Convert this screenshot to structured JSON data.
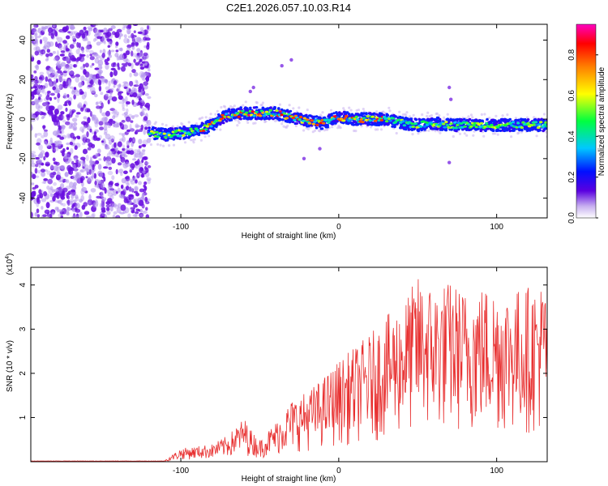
{
  "title": "C2E1.2026.057.10.03.R14",
  "colors": {
    "snr_line": "#e83030",
    "scatter_noise": "#7a2be0",
    "axis": "#000000"
  },
  "chart_data": [
    {
      "type": "heatmap",
      "name": "spectrogram",
      "xlabel": "Height of straight line (km)",
      "ylabel": "Frequency (Hz)",
      "xlim": [
        -195,
        132
      ],
      "ylim": [
        -50,
        48
      ],
      "xticks": [
        -100,
        0,
        100
      ],
      "yticks": [
        -40,
        -20,
        0,
        20,
        40
      ],
      "noise_region_x": [
        -195,
        -120
      ],
      "track": {
        "x": [
          -120,
          -110,
          -100,
          -90,
          -80,
          -75,
          -70,
          -60,
          -50,
          -40,
          -30,
          -20,
          -10,
          0,
          10,
          20,
          30,
          40,
          50,
          60,
          70,
          80,
          90,
          100,
          110,
          120,
          130
        ],
        "freq": [
          -7,
          -8,
          -7,
          -6,
          -3,
          0,
          2,
          3,
          3,
          3,
          1,
          -1,
          -2,
          1,
          0,
          0,
          0,
          -2,
          -3,
          -2,
          -3,
          -3,
          -3,
          -3,
          -3,
          -3,
          -3
        ]
      },
      "colorbar": {
        "label": "Normalized spectral amplitude",
        "range": [
          0.0,
          0.95
        ],
        "ticks": [
          "0.0",
          "0.2",
          "0.4",
          "0.6",
          "0.8"
        ],
        "tick_values": [
          0.0,
          0.2,
          0.4,
          0.6,
          0.8
        ]
      }
    },
    {
      "type": "line",
      "name": "snr",
      "xlabel": "Height of straight line (km)",
      "ylabel": "SNR (10 * v/v)",
      "yscale_label": "(x10",
      "yscale_exp": "4",
      "yscale_close": ")",
      "xlim": [
        -195,
        132
      ],
      "ylim": [
        0,
        4.4
      ],
      "xticks": [
        -100,
        0,
        100
      ],
      "yticks": [
        1,
        2,
        3,
        4
      ],
      "envelope": {
        "x": [
          -195,
          -110,
          -100,
          -80,
          -70,
          -60,
          -55,
          -50,
          -40,
          -30,
          -20,
          -10,
          0,
          10,
          20,
          30,
          40,
          50,
          60,
          70,
          80,
          90,
          100,
          110,
          120,
          132
        ],
        "max": [
          0.02,
          0.04,
          0.3,
          0.4,
          0.6,
          1.0,
          0.7,
          0.5,
          0.9,
          1.4,
          1.6,
          1.9,
          2.3,
          2.6,
          2.9,
          3.3,
          3.6,
          4.2,
          4.0,
          4.1,
          3.9,
          4.0,
          4.0,
          3.9,
          4.0,
          4.1
        ]
      }
    }
  ]
}
